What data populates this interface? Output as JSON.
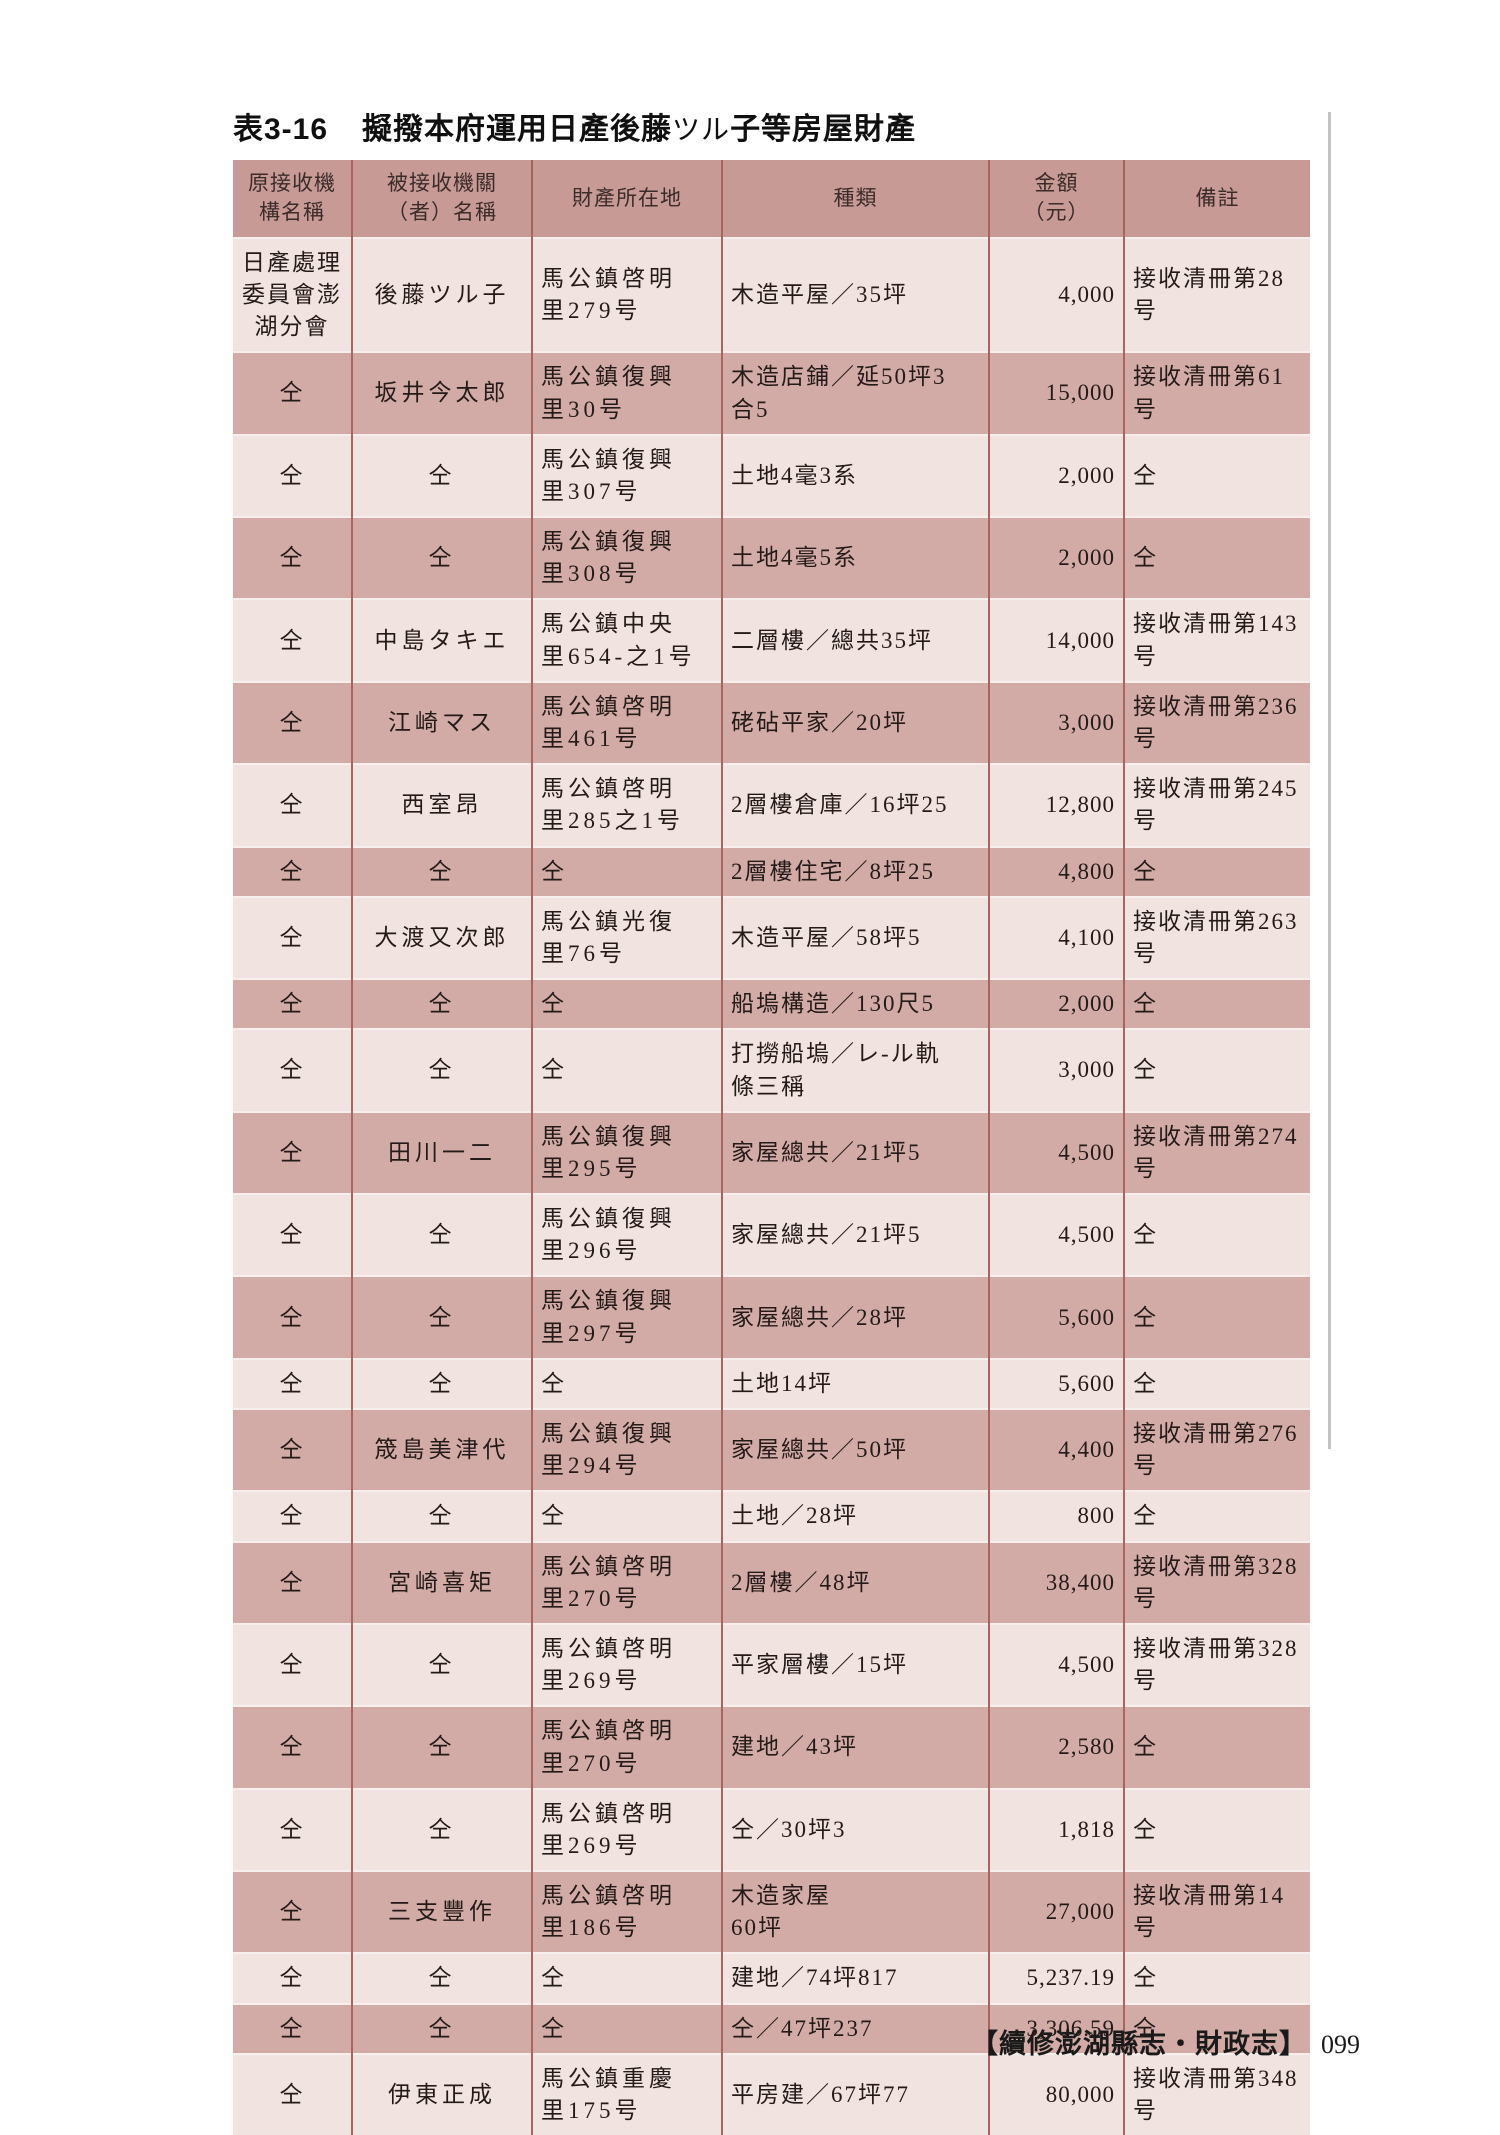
{
  "page": {
    "title_label": "表3-16",
    "title_prefix": "擬撥本府運用日產後藤",
    "title_kana": "ツル",
    "title_suffix": "子等房屋財產",
    "footer_book_title": "【續修澎湖縣志・財政志】",
    "footer_page_number": "099"
  },
  "colors": {
    "header_bg": "#c79a95",
    "row_dark": "#d2aba6",
    "row_light": "#f1e3e0",
    "column_line": "#a8655f",
    "row_separator": "#f7efed",
    "side_rule_grey": "#c2c2c2"
  },
  "table": {
    "headers": [
      "原接收機\n構名稱",
      "被接收機關\n（者）名稱",
      "財產所在地",
      "種類",
      "金額\n（元）",
      "備註"
    ],
    "rows": [
      [
        "日產處理\n委員會澎\n湖分會",
        "後藤ツル子",
        "馬公鎮啓明\n里279号",
        "木造平屋／35坪",
        "4,000",
        "接收清冊第28号"
      ],
      [
        "仝",
        "坂井今太郎",
        "馬公鎮復興\n里30号",
        "木造店鋪／延50坪3\n合5",
        "15,000",
        "接收清冊第61号"
      ],
      [
        "仝",
        "仝",
        "馬公鎮復興\n里307号",
        "土地4毫3系",
        "2,000",
        "仝"
      ],
      [
        "仝",
        "仝",
        "馬公鎮復興\n里308号",
        "土地4毫5系",
        "2,000",
        "仝"
      ],
      [
        "仝",
        "中島タキエ",
        "馬公鎮中央\n里654-之1号",
        "二層樓／總共35坪",
        "14,000",
        "接收清冊第143号"
      ],
      [
        "仝",
        "江崎マス",
        "馬公鎮啓明\n里461号",
        "硓砧平家／20坪",
        "3,000",
        "接收清冊第236号"
      ],
      [
        "仝",
        "西室昂",
        "馬公鎮啓明\n里285之1号",
        "2層樓倉庫／16坪25",
        "12,800",
        "接收清冊第245号"
      ],
      [
        "仝",
        "仝",
        "仝",
        "2層樓住宅／8坪25",
        "4,800",
        "仝"
      ],
      [
        "仝",
        "大渡又次郎",
        "馬公鎮光復\n里76号",
        "木造平屋／58坪5",
        "4,100",
        "接收清冊第263号"
      ],
      [
        "仝",
        "仝",
        "仝",
        "船塢構造／130尺5",
        "2,000",
        "仝"
      ],
      [
        "仝",
        "仝",
        "仝",
        "打撈船塢／レ-ル軌\n條三稱",
        "3,000",
        "仝"
      ],
      [
        "仝",
        "田川一二",
        "馬公鎮復興\n里295号",
        "家屋總共／21坪5",
        "4,500",
        "接收清冊第274号"
      ],
      [
        "仝",
        "仝",
        "馬公鎮復興\n里296号",
        "家屋總共／21坪5",
        "4,500",
        "仝"
      ],
      [
        "仝",
        "仝",
        "馬公鎮復興\n里297号",
        "家屋總共／28坪",
        "5,600",
        "仝"
      ],
      [
        "仝",
        "仝",
        "仝",
        "土地14坪",
        "5,600",
        "仝"
      ],
      [
        "仝",
        "筬島美津代",
        "馬公鎮復興\n里294号",
        "家屋總共／50坪",
        "4,400",
        "接收清冊第276号"
      ],
      [
        "仝",
        "仝",
        "仝",
        "土地／28坪",
        "800",
        "仝"
      ],
      [
        "仝",
        "宮崎喜矩",
        "馬公鎮啓明\n里270号",
        "2層樓／48坪",
        "38,400",
        "接收清冊第328号"
      ],
      [
        "仝",
        "仝",
        "馬公鎮啓明\n里269号",
        "平家層樓／15坪",
        "4,500",
        "接收清冊第328号"
      ],
      [
        "仝",
        "仝",
        "馬公鎮啓明\n里270号",
        "建地／43坪",
        "2,580",
        "仝"
      ],
      [
        "仝",
        "仝",
        "馬公鎮啓明\n里269号",
        "仝／30坪3",
        "1,818",
        "仝"
      ],
      [
        "仝",
        "三支豐作",
        "馬公鎮啓明\n里186号",
        "木造家屋\n60坪",
        "27,000",
        "接收清冊第14号"
      ],
      [
        "仝",
        "仝",
        "仝",
        "建地／74坪817",
        "5,237.19",
        "仝"
      ],
      [
        "仝",
        "仝",
        "仝",
        "仝／47坪237",
        "3,306.59",
        "仝"
      ],
      [
        "仝",
        "伊東正成",
        "馬公鎮重慶\n里175号",
        "平房建／67坪77",
        "80,000",
        "接收清冊第348号"
      ]
    ]
  }
}
